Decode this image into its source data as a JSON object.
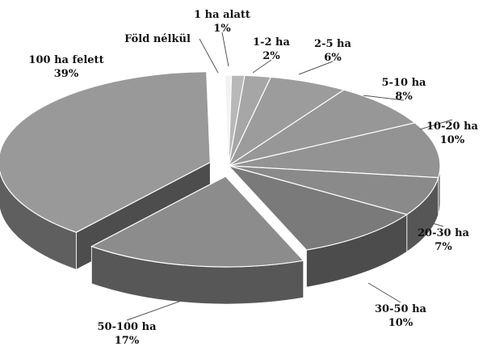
{
  "chart_data": {
    "type": "pie",
    "style": "3d-exploded",
    "legend": "none",
    "categories": [
      "Föld nélkül",
      "1 ha alatt",
      "1-2 ha",
      "2-5 ha",
      "5-10 ha",
      "10-20 ha",
      "20-30 ha",
      "30-50 ha",
      "50-100 ha",
      "100 ha felett"
    ],
    "values": [
      0.5,
      1,
      2,
      6,
      8,
      10,
      7,
      10,
      17,
      39
    ],
    "labels": [
      {
        "name": "Föld nélkül",
        "pct": ""
      },
      {
        "name": "1 ha alatt",
        "pct": "1%"
      },
      {
        "name": "1-2 ha",
        "pct": "2%"
      },
      {
        "name": "2-5 ha",
        "pct": "6%"
      },
      {
        "name": "5-10 ha",
        "pct": "8%"
      },
      {
        "name": "10-20 ha",
        "pct": "10%"
      },
      {
        "name": "20-30 ha",
        "pct": "7%"
      },
      {
        "name": "30-50 ha",
        "pct": "10%"
      },
      {
        "name": "50-100 ha",
        "pct": "17%"
      },
      {
        "name": "100 ha felett",
        "pct": "39%"
      }
    ],
    "colors": [
      "#f2f2f2",
      "#b8b8b8",
      "#a6a6a6",
      "#9c9c9c",
      "#979797",
      "#939393",
      "#8a8a8a",
      "#7a7a7a",
      "#8c8c8c",
      "#999999"
    ]
  }
}
